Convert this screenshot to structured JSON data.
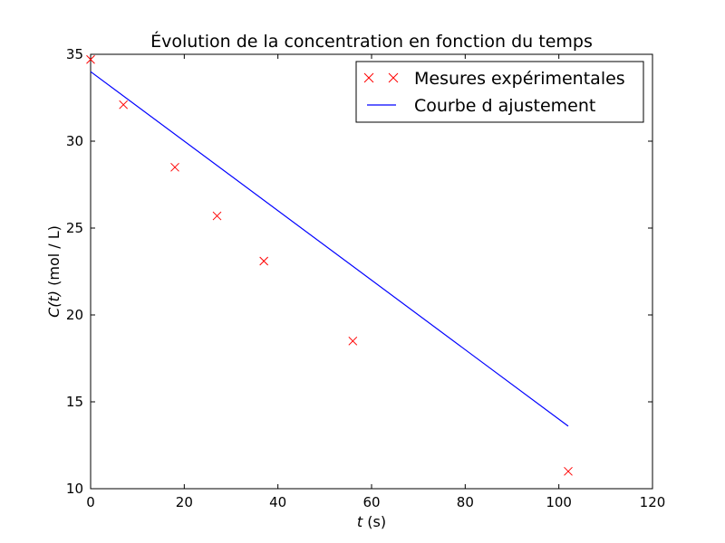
{
  "chart_data": {
    "type": "scatter",
    "title": "Évolution de la concentration en fonction du temps",
    "xlabel": {
      "variable": "t",
      "unit": " (s)"
    },
    "ylabel": {
      "variable": "C(t)",
      "unit": " (mol / L)"
    },
    "xlim": [
      0,
      120
    ],
    "ylim": [
      10,
      35
    ],
    "xticks": [
      0,
      20,
      40,
      60,
      80,
      100,
      120
    ],
    "yticks": [
      10,
      15,
      20,
      25,
      30,
      35
    ],
    "grid": false,
    "legend_position": "top-right",
    "series": [
      {
        "name": "Mesures expérimentales",
        "type": "scatter",
        "marker": "x",
        "color": "#ff0000",
        "x": [
          0,
          7,
          18,
          27,
          37,
          56,
          102
        ],
        "y": [
          34.7,
          32.1,
          28.5,
          25.7,
          23.1,
          18.5,
          11.0
        ]
      },
      {
        "name": "Courbe d ajustement",
        "type": "line",
        "color": "#0000ff",
        "x": [
          0,
          102
        ],
        "y": [
          34.0,
          13.6
        ]
      }
    ]
  }
}
